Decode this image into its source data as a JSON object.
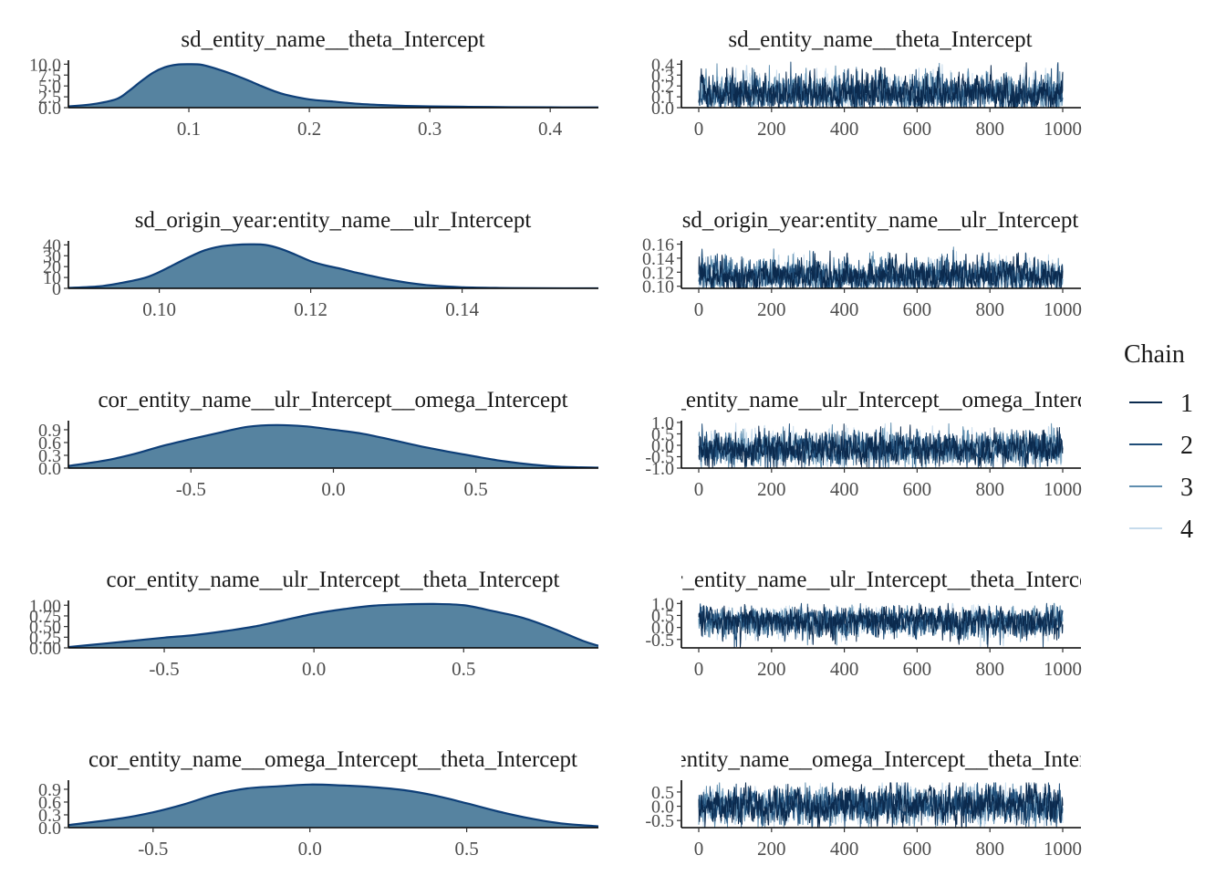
{
  "colors": {
    "density_fill": "#5683A0",
    "density_line": "#0E3F78",
    "chains": [
      "#0B2A4E",
      "#1F4D78",
      "#5F8EAF",
      "#C6DBEC"
    ]
  },
  "legend": {
    "title": "Chain",
    "items": [
      {
        "label": "1",
        "color": "#0B2A4E"
      },
      {
        "label": "2",
        "color": "#1F4D78"
      },
      {
        "label": "3",
        "color": "#5F8EAF"
      },
      {
        "label": "4",
        "color": "#C6DBEC"
      }
    ]
  },
  "chart_data": [
    {
      "type": "area",
      "title": "sd_entity_name__theta_Intercept",
      "xlim": [
        0.0,
        0.44
      ],
      "xticks": [
        "0.1",
        "0.2",
        "0.3",
        "0.4"
      ],
      "xtick_values": [
        0.1,
        0.2,
        0.3,
        0.4
      ],
      "ylim": [
        0,
        10.5
      ],
      "yticks": [
        "0.0",
        "2.5",
        "5.0",
        "7.5",
        "10.0"
      ],
      "ytick_values": [
        0,
        2.5,
        5,
        7.5,
        10
      ],
      "x": [
        0.0,
        0.02,
        0.04,
        0.05,
        0.06,
        0.07,
        0.08,
        0.09,
        0.1,
        0.11,
        0.12,
        0.13,
        0.14,
        0.15,
        0.16,
        0.17,
        0.18,
        0.2,
        0.22,
        0.24,
        0.26,
        0.28,
        0.3,
        0.35,
        0.4,
        0.44
      ],
      "y": [
        0.3,
        0.8,
        2.0,
        3.8,
        6.0,
        8.0,
        9.3,
        9.9,
        10.0,
        9.9,
        9.2,
        8.3,
        7.3,
        6.2,
        5.0,
        3.9,
        3.0,
        1.9,
        1.4,
        0.9,
        0.6,
        0.4,
        0.3,
        0.15,
        0.08,
        0.05
      ]
    },
    {
      "type": "line",
      "title": "sd_entity_name__theta_Intercept",
      "xlim": [
        0,
        1000
      ],
      "xticks": [
        "0",
        "200",
        "400",
        "600",
        "800",
        "1000"
      ],
      "xtick_values": [
        0,
        200,
        400,
        600,
        800,
        1000
      ],
      "ylim": [
        0.0,
        0.42
      ],
      "yticks": [
        "0.0",
        "0.1",
        "0.2",
        "0.3",
        "0.4"
      ],
      "ytick_values": [
        0.0,
        0.1,
        0.2,
        0.3,
        0.4
      ],
      "iterations": 1000,
      "chain_center": 0.115,
      "chain_spread": 0.045,
      "chain_clip": [
        0.005,
        0.42
      ],
      "chain_skew": 1.6
    },
    {
      "type": "area",
      "title": "sd_origin_year:entity_name__ulr_Intercept",
      "xlim": [
        0.088,
        0.158
      ],
      "xticks": [
        "0.10",
        "0.12",
        "0.14"
      ],
      "xtick_values": [
        0.1,
        0.12,
        0.14
      ],
      "ylim": [
        0,
        42
      ],
      "yticks": [
        "0",
        "10",
        "20",
        "30",
        "40"
      ],
      "ytick_values": [
        0,
        10,
        20,
        30,
        40
      ],
      "x": [
        0.088,
        0.092,
        0.095,
        0.098,
        0.1,
        0.102,
        0.104,
        0.106,
        0.108,
        0.11,
        0.112,
        0.114,
        0.116,
        0.118,
        0.12,
        0.122,
        0.124,
        0.126,
        0.128,
        0.13,
        0.133,
        0.136,
        0.14,
        0.145,
        0.15,
        0.158
      ],
      "y": [
        0.4,
        1.8,
        5.0,
        9.5,
        15.0,
        22.0,
        29.0,
        35.0,
        38.5,
        40.0,
        40.5,
        40.0,
        36.5,
        31.0,
        25.0,
        21.0,
        18.0,
        14.5,
        11.5,
        8.5,
        5.0,
        2.6,
        1.0,
        0.35,
        0.12,
        0.04
      ]
    },
    {
      "type": "line",
      "title": "sd_origin_year:entity_name__ulr_Intercept",
      "xlim": [
        0,
        1000
      ],
      "xticks": [
        "0",
        "200",
        "400",
        "600",
        "800",
        "1000"
      ],
      "xtick_values": [
        0,
        200,
        400,
        600,
        800,
        1000
      ],
      "ylim": [
        0.097,
        0.162
      ],
      "yticks": [
        "0.10",
        "0.12",
        "0.14",
        "0.16"
      ],
      "ytick_values": [
        0.1,
        0.12,
        0.14,
        0.16
      ],
      "iterations": 1000,
      "chain_center": 0.114,
      "chain_spread": 0.009,
      "chain_clip": [
        0.097,
        0.16
      ],
      "chain_skew": 0.5
    },
    {
      "type": "area",
      "title": "cor_entity_name__ulr_Intercept__omega_Intercept",
      "xlim": [
        -0.93,
        0.93
      ],
      "xticks": [
        "-0.5",
        "0.0",
        "0.5"
      ],
      "xtick_values": [
        -0.5,
        0.0,
        0.5
      ],
      "ylim": [
        0,
        1.07
      ],
      "yticks": [
        "0.0",
        "0.3",
        "0.6",
        "0.9"
      ],
      "ytick_values": [
        0,
        0.3,
        0.6,
        0.9
      ],
      "x": [
        -0.93,
        -0.8,
        -0.7,
        -0.6,
        -0.5,
        -0.4,
        -0.3,
        -0.2,
        -0.1,
        0.0,
        0.1,
        0.2,
        0.3,
        0.4,
        0.5,
        0.6,
        0.7,
        0.8,
        0.93
      ],
      "y": [
        0.05,
        0.18,
        0.33,
        0.52,
        0.68,
        0.83,
        0.97,
        1.01,
        0.98,
        0.9,
        0.81,
        0.67,
        0.52,
        0.39,
        0.27,
        0.16,
        0.08,
        0.03,
        0.01
      ]
    },
    {
      "type": "line",
      "title": "cor_entity_name__ulr_Intercept__omega_Intercept",
      "xlim": [
        0,
        1000
      ],
      "xticks": [
        "0",
        "200",
        "400",
        "600",
        "800",
        "1000"
      ],
      "xtick_values": [
        0,
        200,
        400,
        600,
        800,
        1000
      ],
      "ylim": [
        -1.0,
        1.0
      ],
      "yticks": [
        "-1.0",
        "-0.5",
        "0.0",
        "0.5",
        "1.0"
      ],
      "ytick_values": [
        -1.0,
        -0.5,
        0.0,
        0.5,
        1.0
      ],
      "iterations": 1000,
      "chain_center": -0.15,
      "chain_spread": 0.34,
      "chain_clip": [
        -0.98,
        0.98
      ],
      "chain_skew": 0
    },
    {
      "type": "area",
      "title": "cor_entity_name__ulr_Intercept__theta_Intercept",
      "xlim": [
        -0.82,
        0.95
      ],
      "xticks": [
        "-0.5",
        "0.0",
        "0.5"
      ],
      "xtick_values": [
        -0.5,
        0.0,
        0.5
      ],
      "ylim": [
        0,
        1.07
      ],
      "yticks": [
        "0.00",
        "0.25",
        "0.50",
        "0.75",
        "1.00"
      ],
      "ytick_values": [
        0,
        0.25,
        0.5,
        0.75,
        1.0
      ],
      "x": [
        -0.82,
        -0.7,
        -0.6,
        -0.5,
        -0.4,
        -0.3,
        -0.2,
        -0.1,
        0.0,
        0.1,
        0.2,
        0.3,
        0.4,
        0.5,
        0.6,
        0.7,
        0.8,
        0.9,
        0.95
      ],
      "y": [
        0.02,
        0.1,
        0.17,
        0.24,
        0.3,
        0.39,
        0.5,
        0.65,
        0.8,
        0.91,
        0.99,
        1.02,
        1.03,
        1.0,
        0.86,
        0.7,
        0.45,
        0.16,
        0.05
      ]
    },
    {
      "type": "line",
      "title": "cor_entity_name__ulr_Intercept__theta_Intercept",
      "xlim": [
        0,
        1000
      ],
      "xticks": [
        "0",
        "200",
        "400",
        "600",
        "800",
        "1000"
      ],
      "xtick_values": [
        0,
        200,
        400,
        600,
        800,
        1000
      ],
      "ylim": [
        -0.85,
        1.05
      ],
      "yticks": [
        "-0.5",
        "0.0",
        "0.5",
        "1.0"
      ],
      "ytick_values": [
        -0.5,
        0.0,
        0.5,
        1.0
      ],
      "iterations": 1000,
      "chain_center": 0.3,
      "chain_spread": 0.38,
      "chain_clip": [
        -0.82,
        1.0
      ],
      "chain_skew": -0.6
    },
    {
      "type": "area",
      "title": "cor_entity_name__omega_Intercept__theta_Intercept",
      "xlim": [
        -0.77,
        0.92
      ],
      "xticks": [
        "-0.5",
        "0.0",
        "0.5"
      ],
      "xtick_values": [
        -0.5,
        0.0,
        0.5
      ],
      "ylim": [
        0,
        1.07
      ],
      "yticks": [
        "0.0",
        "0.3",
        "0.6",
        "0.9"
      ],
      "ytick_values": [
        0,
        0.3,
        0.6,
        0.9
      ],
      "x": [
        -0.77,
        -0.6,
        -0.5,
        -0.4,
        -0.3,
        -0.2,
        -0.1,
        0.0,
        0.1,
        0.2,
        0.3,
        0.4,
        0.5,
        0.6,
        0.7,
        0.8,
        0.92
      ],
      "y": [
        0.06,
        0.22,
        0.36,
        0.55,
        0.78,
        0.92,
        0.97,
        1.01,
        0.99,
        0.95,
        0.88,
        0.75,
        0.57,
        0.38,
        0.22,
        0.1,
        0.03
      ]
    },
    {
      "type": "line",
      "title": "cor_entity_name__omega_Intercept__theta_Intercept",
      "xlim": [
        0,
        1000
      ],
      "xticks": [
        "0",
        "200",
        "400",
        "600",
        "800",
        "1000"
      ],
      "xtick_values": [
        0,
        200,
        400,
        600,
        800,
        1000
      ],
      "ylim": [
        -0.75,
        0.85
      ],
      "yticks": [
        "-0.5",
        "0.0",
        "0.5"
      ],
      "ytick_values": [
        -0.5,
        0.0,
        0.5
      ],
      "iterations": 1000,
      "chain_center": 0.05,
      "chain_spread": 0.3,
      "chain_clip": [
        -0.72,
        0.82
      ],
      "chain_skew": 0
    }
  ]
}
